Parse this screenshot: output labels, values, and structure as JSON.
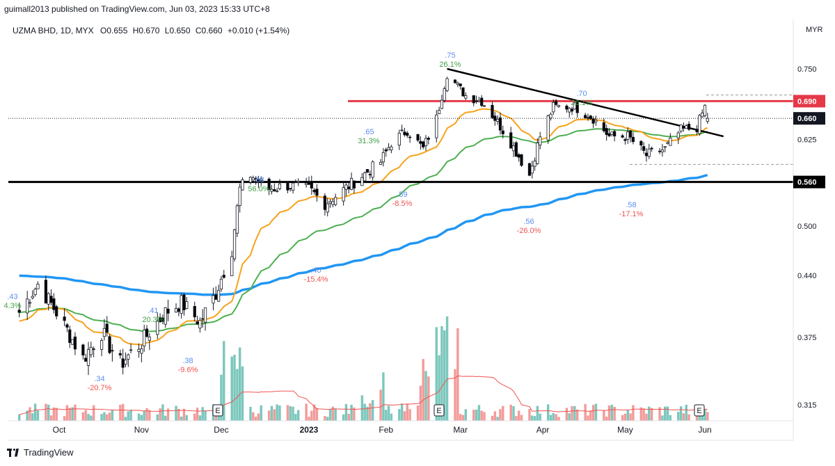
{
  "header": {
    "text": "guimall2013 published on TradingView.com, Jun 03, 2023 15:33 UTC+8"
  },
  "symbol": {
    "name": "UZMA BHD, 1D, MYX",
    "open_label": "O",
    "open": "0.655",
    "high_label": "H",
    "high": "0.670",
    "low_label": "L",
    "low": "0.650",
    "close_label": "C",
    "close": "0.660",
    "change": "+0.010 (+1.54%)"
  },
  "footer": {
    "brand": "TradingView"
  },
  "colors": {
    "up_candle": "#ffffff",
    "down_candle": "#000000",
    "wick": "#131722",
    "ema_fast": "#f7a21c",
    "ema_mid": "#4caf50",
    "ema_slow": "#2196f3",
    "resistance": "#e53948",
    "support": "#000000",
    "trendline": "#000000",
    "vol_up": "#7cc7bd",
    "vol_down": "#f29c9a",
    "vol_ma": "#ef5350",
    "label_pos": "#43a047",
    "label_neg": "#ef5350",
    "label_price": "#5b8def"
  },
  "chart_data": {
    "type": "candlestick",
    "currency": "MYX",
    "y_axis": {
      "unit_label": "MYR",
      "ticks": [
        "0.750",
        "0.690",
        "0.660",
        "0.625",
        "0.560",
        "0.500",
        "0.440",
        "0.375",
        "0.315"
      ],
      "log_scale": true
    },
    "x_axis": {
      "labels": [
        "Oct",
        "Nov",
        "Dec",
        "2023",
        "Feb",
        "Mar",
        "Apr",
        "May",
        "Jun"
      ]
    },
    "last_price": "0.660",
    "horizontal_levels": [
      {
        "label": "0.690",
        "price": 0.69,
        "color": "#e53948"
      },
      {
        "label": "0.560",
        "price": 0.56,
        "color": "#000000"
      }
    ],
    "trendline": {
      "from": [
        "Feb 24, 2023",
        0.75
      ],
      "to": [
        "Jun 08, 2023",
        0.63
      ]
    },
    "pivot_annotations": [
      {
        "price_label": ".43",
        "pct_label": "4.3%"
      },
      {
        "price_label": ".34",
        "pct_label": "-20.7%"
      },
      {
        "price_label": ".41",
        "pct_label": "20.3%"
      },
      {
        "price_label": ".38",
        "pct_label": "-9.6%"
      },
      {
        "price_label": ".58",
        "pct_label": "56.0%"
      },
      {
        "price_label": ".40",
        "pct_label": "-15.4%"
      },
      {
        "price_label": ".65",
        "pct_label": "31.3%"
      },
      {
        "price_label": ".59",
        "pct_label": "-8.5%"
      },
      {
        "price_label": ".75",
        "pct_label": "26.1%"
      },
      {
        "price_label": ".56",
        "pct_label": "-26.0%"
      },
      {
        "price_label": ".70",
        "pct_label": "26.1%"
      },
      {
        "price_label": ".58",
        "pct_label": "-17.1%"
      }
    ],
    "earnings_markers": [
      "E",
      "E",
      "E"
    ],
    "anchor_prices": [
      [
        "2022-09-16",
        0.4
      ],
      [
        "2022-09-23",
        0.43
      ],
      [
        "2022-09-30",
        0.4
      ],
      [
        "2022-10-10",
        0.355
      ],
      [
        "2022-10-17",
        0.38
      ],
      [
        "2022-10-24",
        0.35
      ],
      [
        "2022-11-01",
        0.37
      ],
      [
        "2022-11-10",
        0.4
      ],
      [
        "2022-11-16",
        0.41
      ],
      [
        "2022-11-23",
        0.39
      ],
      [
        "2022-11-29",
        0.42
      ],
      [
        "2022-12-05",
        0.47
      ],
      [
        "2022-12-08",
        0.55
      ],
      [
        "2022-12-12",
        0.57
      ],
      [
        "2022-12-19",
        0.55
      ],
      [
        "2022-12-26",
        0.555
      ],
      [
        "2023-01-03",
        0.55
      ],
      [
        "2023-01-09",
        0.53
      ],
      [
        "2023-01-13",
        0.54
      ],
      [
        "2023-01-20",
        0.56
      ],
      [
        "2023-01-30",
        0.59
      ],
      [
        "2023-02-03",
        0.62
      ],
      [
        "2023-02-09",
        0.64
      ],
      [
        "2023-02-15",
        0.61
      ],
      [
        "2023-02-20",
        0.66
      ],
      [
        "2023-02-24",
        0.74
      ],
      [
        "2023-03-03",
        0.7
      ],
      [
        "2023-03-09",
        0.69
      ],
      [
        "2023-03-14",
        0.66
      ],
      [
        "2023-03-20",
        0.62
      ],
      [
        "2023-03-27",
        0.57
      ],
      [
        "2023-03-31",
        0.63
      ],
      [
        "2023-04-05",
        0.68
      ],
      [
        "2023-04-13",
        0.68
      ],
      [
        "2023-04-20",
        0.66
      ],
      [
        "2023-04-26",
        0.63
      ],
      [
        "2023-05-03",
        0.63
      ],
      [
        "2023-05-10",
        0.6
      ],
      [
        "2023-05-17",
        0.61
      ],
      [
        "2023-05-23",
        0.64
      ],
      [
        "2023-05-29",
        0.645
      ],
      [
        "2023-06-01",
        0.68
      ],
      [
        "2023-06-02",
        0.66
      ]
    ]
  }
}
